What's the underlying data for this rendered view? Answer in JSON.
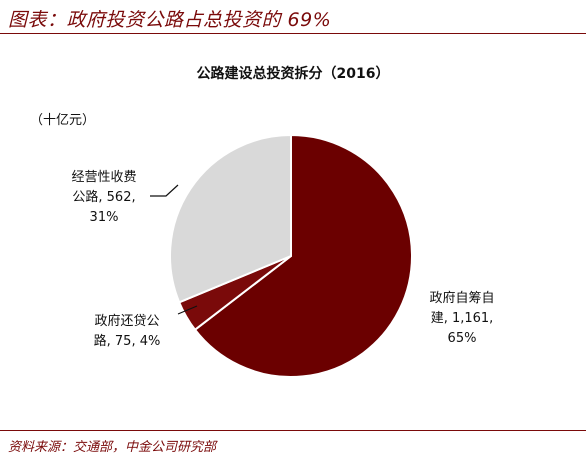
{
  "header": {
    "title": "图表：政府投资公路占总投资的 69%"
  },
  "source": "资料来源：交通部，中金公司研究部",
  "chart_data": {
    "type": "pie",
    "title": "公路建设总投资拆分（2016）",
    "unit": "（十亿元）",
    "slices": [
      {
        "label_lines": [
          "政府自筹自",
          "建, 1,161,",
          "65%"
        ],
        "value": 1161,
        "percent": 65,
        "color": "#6b0000"
      },
      {
        "label_lines": [
          "政府还贷公",
          "路, 75, 4%"
        ],
        "value": 75,
        "percent": 4,
        "color": "#7a0a0a"
      },
      {
        "label_lines": [
          "经营性收费",
          "公路, 562,",
          "31%"
        ],
        "value": 562,
        "percent": 31,
        "color": "#d9d9d9"
      }
    ]
  }
}
